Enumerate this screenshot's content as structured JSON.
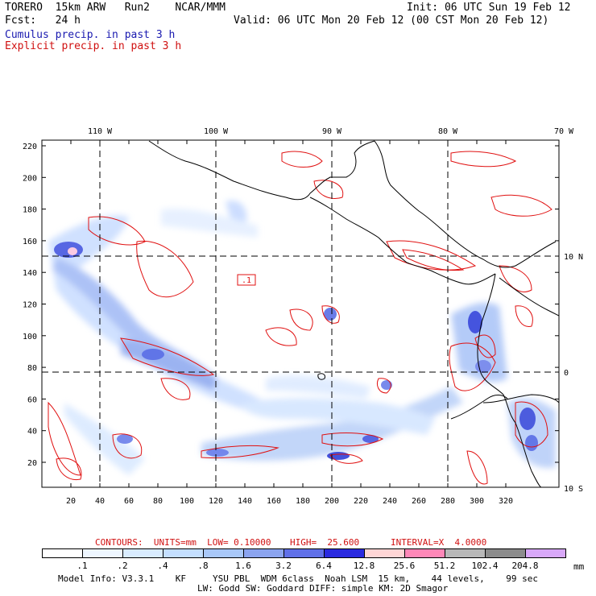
{
  "header": {
    "model": "TORERO  15km ARW   Run2    NCAR/MMM",
    "init": "Init: 06 UTC Sun 19 Feb 12",
    "fcst": "Fcst:   24 h",
    "valid": "Valid: 06 UTC Mon 20 Feb 12 (00 CST Mon 20 Feb 12)",
    "legend_cumulus": "Cumulus precip. in past 3 h",
    "legend_explicit": "Explicit precip. in past 3 h"
  },
  "map": {
    "lon_labels": [
      "110 W",
      "100 W",
      "90 W",
      "80 W",
      "70 W"
    ],
    "lat_labels": [
      "10 N",
      "0",
      "10 S"
    ],
    "y_ticks": [
      "220",
      "200",
      "180",
      "160",
      "140",
      "120",
      "100",
      "80",
      "60",
      "40",
      "20"
    ],
    "x_ticks": [
      "20",
      "40",
      "60",
      "80",
      "100",
      "120",
      "140",
      "160",
      "180",
      "200",
      "220",
      "240",
      "260",
      "280",
      "300",
      "320"
    ],
    "contour_label": ".1",
    "colors": {
      "contour": "#e01010",
      "coast": "#000000",
      "frame": "#000000"
    }
  },
  "contour_info": {
    "contours": "CONTOURS:  UNITS=mm  LOW= 0.10000",
    "high": "HIGH=  25.600",
    "interval": "INTERVAL=X  4.0000"
  },
  "colorbar": {
    "unit": "mm",
    "labels": [
      ".1",
      ".2",
      ".4",
      ".8",
      "1.6",
      "3.2",
      "6.4",
      "12.8",
      "25.6",
      "51.2",
      "102.4",
      "204.8"
    ],
    "colors": [
      "#ffffff",
      "#eef6ff",
      "#d9ecff",
      "#c4dfff",
      "#a9c8f8",
      "#8ba4ef",
      "#6070e8",
      "#2a2ae0",
      "#ffd6d6",
      "#ff88b8",
      "#b8b8b8",
      "#8c8c8c",
      "#d8a8f8"
    ]
  },
  "footer": {
    "line1": "Model Info: V3.3.1    KF     YSU PBL  WDM 6class  Noah LSM  15 km,    44 levels,    99 sec",
    "line2": "LW: Godd SW: Goddard DIFF: simple KM: 2D Smagor"
  }
}
